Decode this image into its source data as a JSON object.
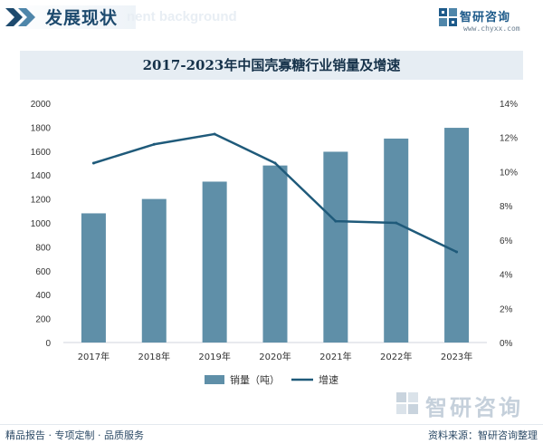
{
  "header": {
    "title": "发展现状",
    "subtitle_en": "nent background"
  },
  "logo": {
    "name": "智研咨询",
    "url": "www.chyxx.com"
  },
  "chart_data": {
    "type": "bar+line",
    "title": "2017-2023年中国壳寡糖行业销量及增速",
    "categories": [
      "2017年",
      "2018年",
      "2019年",
      "2020年",
      "2021年",
      "2022年",
      "2023年"
    ],
    "series": [
      {
        "name": "销量（吨）",
        "type": "bar",
        "axis": "left",
        "color": "#5f8fa8",
        "values": [
          1080,
          1200,
          1345,
          1480,
          1595,
          1705,
          1795
        ]
      },
      {
        "name": "增速",
        "type": "line",
        "axis": "right",
        "color": "#1f5a7a",
        "values": [
          10.5,
          11.6,
          12.2,
          10.5,
          7.1,
          7.0,
          5.3
        ]
      }
    ],
    "y_left": {
      "min": 0,
      "max": 2000,
      "step": 200,
      "ticks": [
        "0",
        "200",
        "400",
        "600",
        "800",
        "1000",
        "1200",
        "1400",
        "1600",
        "1800",
        "2000"
      ]
    },
    "y_right": {
      "min": 0,
      "max": 14,
      "step": 2,
      "ticks": [
        "0%",
        "2%",
        "4%",
        "6%",
        "8%",
        "10%",
        "12%",
        "14%"
      ]
    },
    "grid": false,
    "legend_position": "bottom-center"
  },
  "footer": {
    "left_text": "精品报告 · 专项定制 · 品质服务",
    "right_text": "资料来源：智研咨询整理",
    "watermark_name": "智研咨询"
  },
  "colors": {
    "brand_dark": "#1d4a6e",
    "bar": "#5f8fa8",
    "line": "#1f5a7a",
    "title_bg": "#e6edf3"
  }
}
